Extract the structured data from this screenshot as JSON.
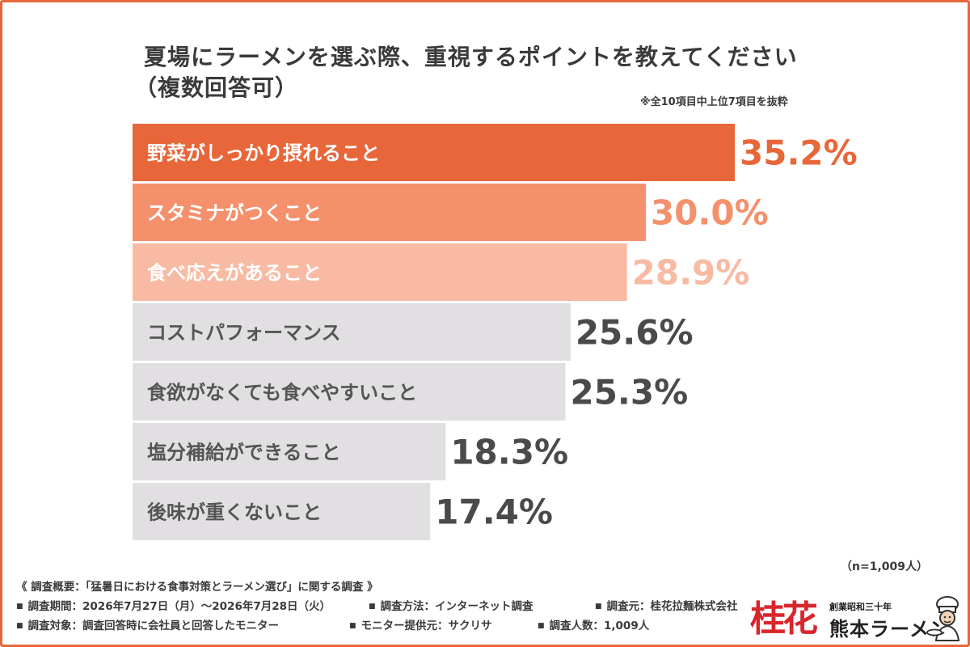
{
  "title_line1": "夏場にラーメンを選ぶ際、重視するポイントを教えてください",
  "title_line2": "（複数回答可）",
  "excerpt_note": "※全10項目中上位7項目を抜粋",
  "sample_size": "（n=1,009人）",
  "chart_data": {
    "type": "bar",
    "orientation": "horizontal",
    "unit": "%",
    "xlim": [
      0,
      35.2
    ],
    "categories": [
      "野菜がしっかり摂れること",
      "スタミナがつくこと",
      "食べ応えがあること",
      "コストパフォーマンス",
      "食欲がなくても食べやすいこと",
      "塩分補給ができること",
      "後味が重くないこと"
    ],
    "values": [
      35.2,
      30.0,
      28.9,
      25.6,
      25.3,
      18.3,
      17.4
    ],
    "value_labels": [
      "35.2%",
      "30.0%",
      "28.9%",
      "25.6%",
      "25.3%",
      "18.3%",
      "17.4%"
    ],
    "bar_colors": [
      "#e8673a",
      "#f4906b",
      "#f8baa3",
      "#e1dfe1",
      "#e1dfe1",
      "#e1dfe1",
      "#e1dfe1"
    ],
    "label_colors": [
      "#ffffff",
      "#ffffff",
      "#ffffff",
      "#555555",
      "#555555",
      "#555555",
      "#555555"
    ],
    "value_colors": [
      "#e8673a",
      "#f4906b",
      "#f8baa3",
      "#4a4a4a",
      "#4a4a4a",
      "#4a4a4a",
      "#4a4a4a"
    ]
  },
  "footer": {
    "heading": "《 調査概要：「猛暑日における食事対策とラーメン選び」に関する調査 》",
    "period": "調査期間：2026年7月27日（月）～2026年7月28日（火）",
    "method": "調査方法：インターネット調査",
    "source": "調査元：桂花拉麵株式会社",
    "target": "調査対象：調査回答時に会社員と回答したモニター",
    "provider": "モニター提供元：サクリサ",
    "respondents": "調査人数：1,009人"
  },
  "logo": {
    "mark": "桂花",
    "since": "創業昭和三十年",
    "name": "熊本ラーメン",
    "icon": "chef-icon"
  }
}
